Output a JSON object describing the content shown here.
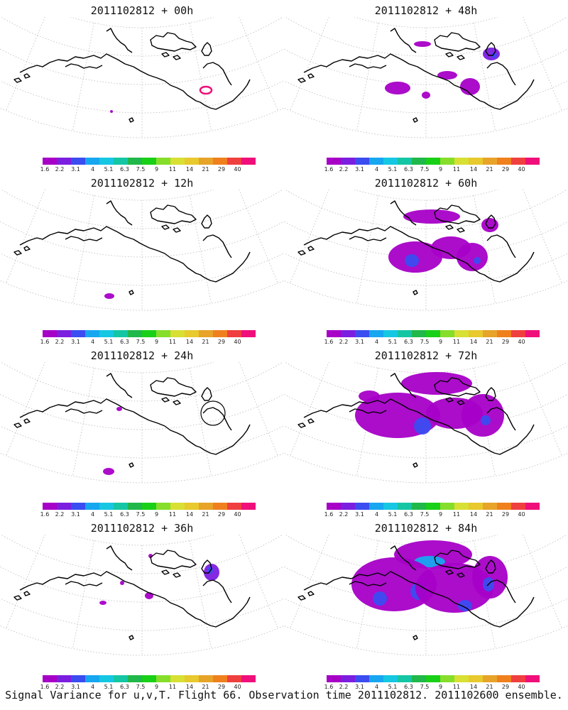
{
  "colorbar": {
    "colors": [
      "#a700c7",
      "#7c1ee0",
      "#3b4cf0",
      "#17a6f0",
      "#16c7e3",
      "#15c6a4",
      "#20b84a",
      "#19d018",
      "#86de2a",
      "#d7e033",
      "#e8c92e",
      "#e8a329",
      "#f0801e",
      "#f03f3f",
      "#f00f7a"
    ],
    "labels": [
      "1.6",
      "2.2",
      "3.1",
      "4",
      "5.1",
      "6.3",
      "7.5",
      "9",
      "11",
      "14",
      "21",
      "29",
      "40"
    ]
  },
  "panels": [
    {
      "id": "p00",
      "title": "2011102812 + 00h",
      "blobs": [
        {
          "cx": 290,
          "cy": 103,
          "rx": 8,
          "ry": 5,
          "level": 15,
          "ring": true
        },
        {
          "cx": 157,
          "cy": 133,
          "rx": 2,
          "ry": 2,
          "level": 1
        }
      ]
    },
    {
      "id": "p48",
      "title": "2011102812 + 48h",
      "blobs": [
        {
          "cx": 595,
          "cy": 38,
          "rx": 12,
          "ry": 4,
          "level": 1
        },
        {
          "cx": 560,
          "cy": 100,
          "rx": 18,
          "ry": 9,
          "level": 1
        },
        {
          "cx": 600,
          "cy": 110,
          "rx": 6,
          "ry": 5,
          "level": 1
        },
        {
          "cx": 630,
          "cy": 82,
          "rx": 14,
          "ry": 6,
          "level": 1
        },
        {
          "cx": 662,
          "cy": 98,
          "rx": 14,
          "ry": 12,
          "level": 1
        },
        {
          "cx": 692,
          "cy": 52,
          "rx": 12,
          "ry": 9,
          "level": 2
        },
        {
          "cx": 696,
          "cy": 54,
          "rx": 4,
          "ry": 4,
          "level": 3
        }
      ]
    },
    {
      "id": "p12",
      "title": "2011102812 + 12h",
      "blobs": [
        {
          "cx": 154,
          "cy": 150,
          "rx": 7,
          "ry": 4,
          "level": 1
        }
      ]
    },
    {
      "id": "p60",
      "title": "2011102812 + 60h",
      "blobs": [
        {
          "cx": 608,
          "cy": 38,
          "rx": 40,
          "ry": 10,
          "level": 1
        },
        {
          "cx": 585,
          "cy": 95,
          "rx": 38,
          "ry": 22,
          "level": 1
        },
        {
          "cx": 580,
          "cy": 100,
          "rx": 10,
          "ry": 9,
          "level": 3
        },
        {
          "cx": 635,
          "cy": 82,
          "rx": 28,
          "ry": 16,
          "level": 1
        },
        {
          "cx": 665,
          "cy": 95,
          "rx": 22,
          "ry": 20,
          "level": 1
        },
        {
          "cx": 672,
          "cy": 100,
          "rx": 5,
          "ry": 5,
          "level": 3
        },
        {
          "cx": 690,
          "cy": 50,
          "rx": 12,
          "ry": 10,
          "level": 1
        }
      ]
    },
    {
      "id": "p24",
      "title": "2011102812 + 24h",
      "blobs": [
        {
          "cx": 168,
          "cy": 66,
          "rx": 4,
          "ry": 3,
          "level": 1
        },
        {
          "cx": 153,
          "cy": 154,
          "rx": 8,
          "ry": 5,
          "level": 1
        },
        {
          "cx": 300,
          "cy": 72,
          "rx": 17,
          "ry": 17,
          "level": 0,
          "ring": true
        }
      ]
    },
    {
      "id": "p72",
      "title": "2011102812 + 72h",
      "blobs": [
        {
          "cx": 615,
          "cy": 30,
          "rx": 50,
          "ry": 16,
          "level": 1
        },
        {
          "cx": 560,
          "cy": 75,
          "rx": 60,
          "ry": 32,
          "level": 1
        },
        {
          "cx": 595,
          "cy": 90,
          "rx": 12,
          "ry": 12,
          "level": 3
        },
        {
          "cx": 640,
          "cy": 72,
          "rx": 40,
          "ry": 22,
          "level": 1
        },
        {
          "cx": 680,
          "cy": 75,
          "rx": 30,
          "ry": 30,
          "level": 1
        },
        {
          "cx": 684,
          "cy": 82,
          "rx": 7,
          "ry": 7,
          "level": 3
        },
        {
          "cx": 520,
          "cy": 48,
          "rx": 15,
          "ry": 8,
          "level": 1
        }
      ]
    },
    {
      "id": "p36",
      "title": "2011102812 + 36h",
      "blobs": [
        {
          "cx": 298,
          "cy": 53,
          "rx": 11,
          "ry": 12,
          "level": 2
        },
        {
          "cx": 296,
          "cy": 50,
          "rx": 4,
          "ry": 5,
          "level": 3
        },
        {
          "cx": 210,
          "cy": 86,
          "rx": 6,
          "ry": 5,
          "level": 1
        },
        {
          "cx": 145,
          "cy": 96,
          "rx": 5,
          "ry": 3,
          "level": 1
        },
        {
          "cx": 212,
          "cy": 30,
          "rx": 3,
          "ry": 3,
          "level": 1
        },
        {
          "cx": 172,
          "cy": 68,
          "rx": 3,
          "ry": 3,
          "level": 1
        }
      ]
    },
    {
      "id": "p84",
      "title": "2011102812 + 84h",
      "blobs": [
        {
          "cx": 610,
          "cy": 28,
          "rx": 55,
          "ry": 20,
          "level": 1
        },
        {
          "cx": 605,
          "cy": 38,
          "rx": 22,
          "ry": 8,
          "level": 4
        },
        {
          "cx": 555,
          "cy": 70,
          "rx": 60,
          "ry": 38,
          "level": 1
        },
        {
          "cx": 535,
          "cy": 90,
          "rx": 10,
          "ry": 10,
          "level": 3
        },
        {
          "cx": 590,
          "cy": 80,
          "rx": 12,
          "ry": 12,
          "level": 3
        },
        {
          "cx": 640,
          "cy": 75,
          "rx": 55,
          "ry": 35,
          "level": 1
        },
        {
          "cx": 690,
          "cy": 60,
          "rx": 25,
          "ry": 30,
          "level": 1
        },
        {
          "cx": 688,
          "cy": 70,
          "rx": 8,
          "ry": 10,
          "level": 3
        },
        {
          "cx": 655,
          "cy": 100,
          "rx": 10,
          "ry": 8,
          "level": 3
        }
      ]
    }
  ],
  "footer": "Signal Variance for u,v,T. Flight 66. Observation time 2011102812. 2011102600 ensemble."
}
